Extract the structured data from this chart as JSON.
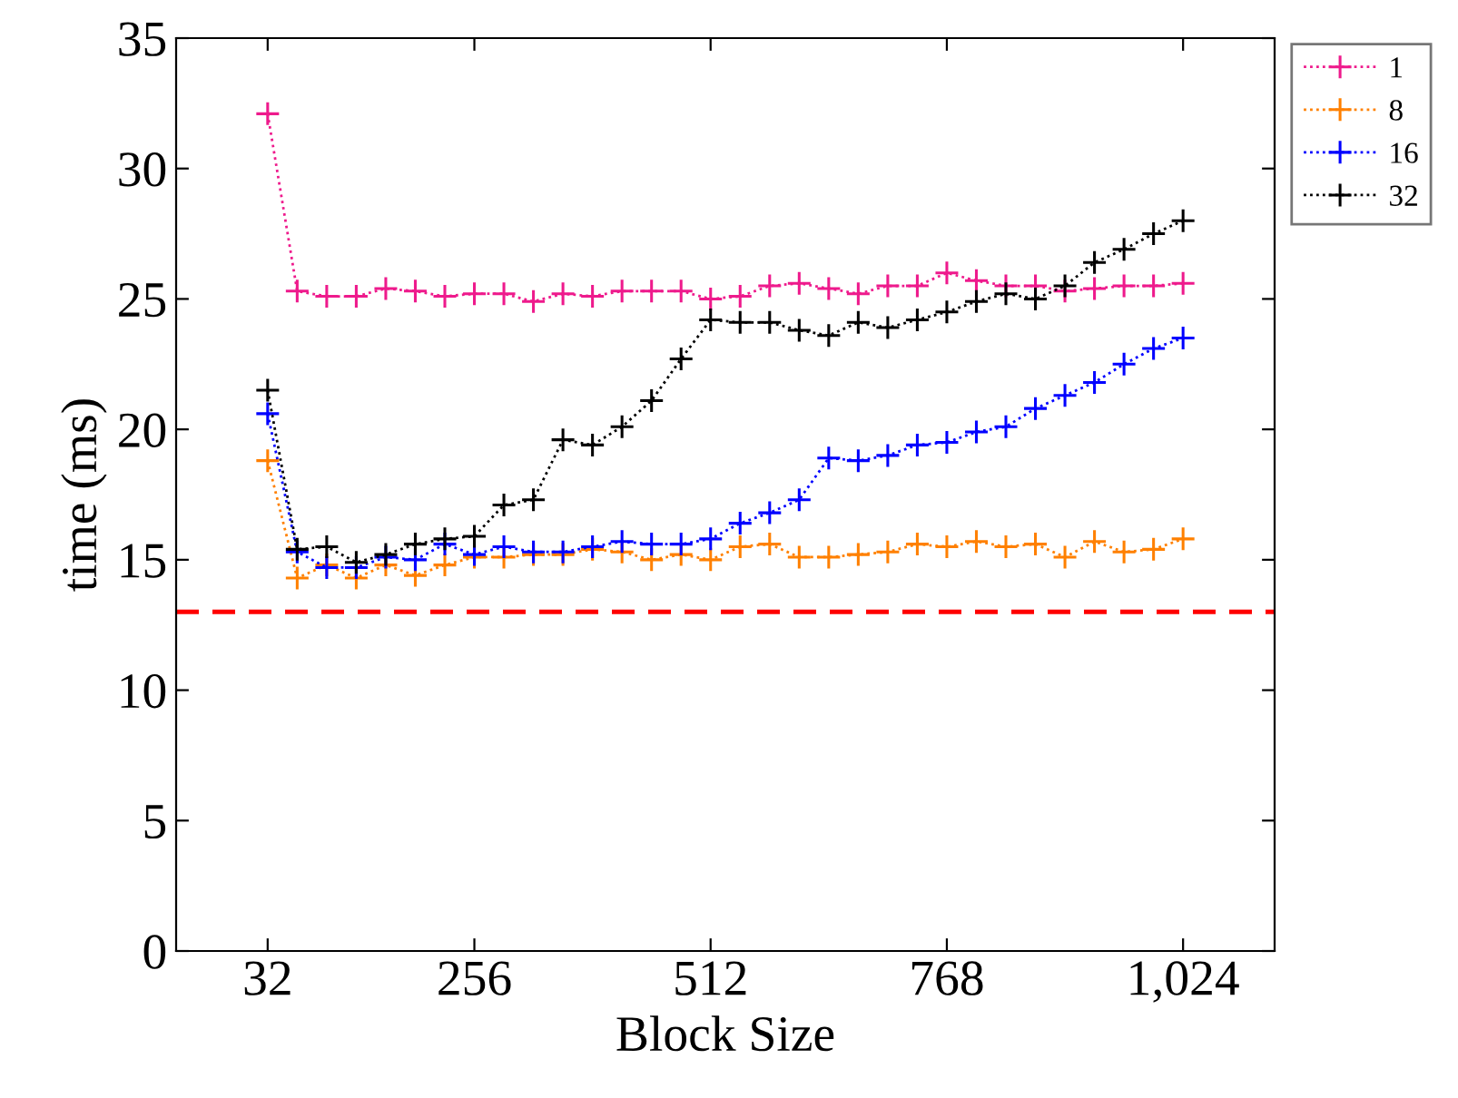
{
  "chart_data": {
    "type": "line",
    "xlabel": "Block Size",
    "ylabel": "time (ms)",
    "x": [
      32,
      64,
      96,
      128,
      160,
      192,
      224,
      256,
      288,
      320,
      352,
      384,
      416,
      448,
      480,
      512,
      544,
      576,
      608,
      640,
      672,
      704,
      736,
      768,
      800,
      832,
      864,
      896,
      928,
      960,
      992,
      1024
    ],
    "xlim": [
      -67.2,
      1123.2
    ],
    "xticks": [
      32,
      256,
      512,
      768,
      {
        "value": 1024,
        "label": "1,024"
      }
    ],
    "ylim": [
      0,
      35
    ],
    "yticks": [
      0,
      5,
      10,
      15,
      20,
      25,
      30,
      35
    ],
    "marker": "cross",
    "line_style": "dotted",
    "legend": "top right",
    "grid": false,
    "ref_lines": [
      {
        "axis": "y",
        "value": 13,
        "color": "#ff0000",
        "line_style": "dashed"
      }
    ],
    "series": [
      {
        "name": "1",
        "color": "#ee1a8c",
        "values": [
          32.1,
          25.3,
          25.1,
          25.1,
          25.4,
          25.3,
          25.1,
          25.2,
          25.2,
          24.9,
          25.2,
          25.1,
          25.3,
          25.3,
          25.3,
          25.0,
          25.1,
          25.5,
          25.6,
          25.4,
          25.2,
          25.5,
          25.5,
          26.0,
          25.7,
          25.5,
          25.5,
          25.3,
          25.4,
          25.5,
          25.5,
          25.6
        ]
      },
      {
        "name": "8",
        "color": "#ff8000",
        "values": [
          18.8,
          14.3,
          14.8,
          14.3,
          14.8,
          14.4,
          14.8,
          15.1,
          15.1,
          15.2,
          15.2,
          15.4,
          15.3,
          15.0,
          15.2,
          15.0,
          15.5,
          15.6,
          15.1,
          15.1,
          15.2,
          15.3,
          15.6,
          15.5,
          15.7,
          15.5,
          15.6,
          15.1,
          15.7,
          15.3,
          15.4,
          15.8
        ]
      },
      {
        "name": "16",
        "color": "#0000ff",
        "values": [
          20.6,
          15.3,
          14.7,
          14.7,
          15.1,
          15.0,
          15.6,
          15.2,
          15.5,
          15.3,
          15.3,
          15.5,
          15.7,
          15.6,
          15.6,
          15.8,
          16.4,
          16.8,
          17.3,
          18.9,
          18.8,
          19.0,
          19.4,
          19.5,
          19.9,
          20.1,
          20.8,
          21.3,
          21.8,
          22.5,
          23.1,
          23.5
        ]
      },
      {
        "name": "32",
        "color": "#000000",
        "values": [
          21.5,
          15.4,
          15.5,
          14.9,
          15.2,
          15.6,
          15.8,
          15.9,
          17.1,
          17.3,
          19.6,
          19.4,
          20.1,
          21.1,
          22.7,
          24.2,
          24.1,
          24.1,
          23.8,
          23.6,
          24.1,
          23.9,
          24.2,
          24.5,
          24.9,
          25.2,
          25.0,
          25.5,
          26.4,
          26.9,
          27.5,
          28.0
        ]
      }
    ]
  }
}
